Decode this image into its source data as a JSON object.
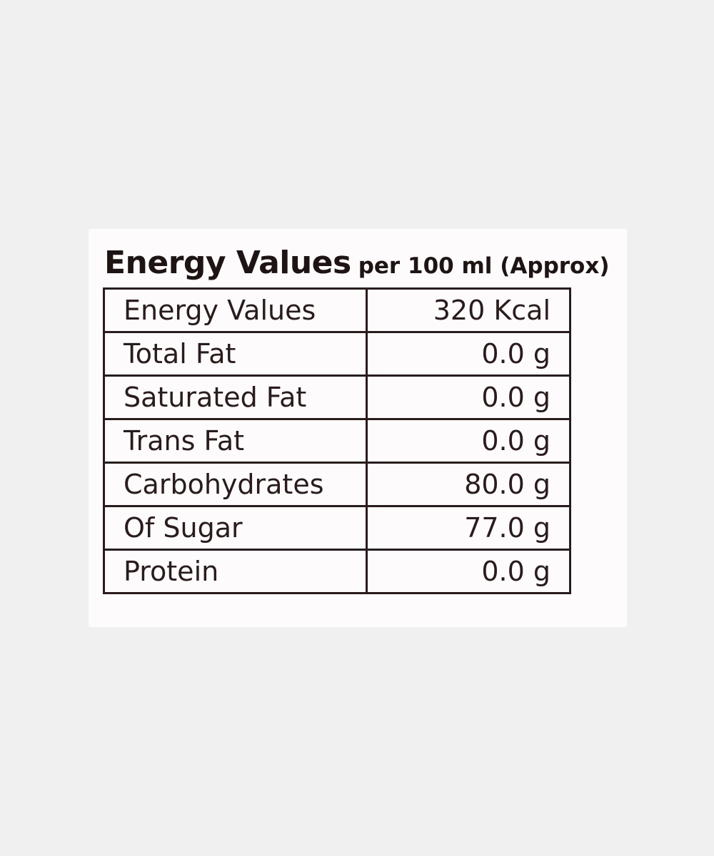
{
  "header": {
    "title": "Energy Values",
    "subtitle": "per 100 ml (Approx)"
  },
  "table": {
    "rows": [
      [
        "Energy Values",
        "320 Kcal"
      ],
      [
        "Total Fat",
        "0.0 g"
      ],
      [
        "Saturated Fat",
        "0.0 g"
      ],
      [
        "Trans Fat",
        "0.0 g"
      ],
      [
        "Carbohydrates",
        "80.0 g"
      ],
      [
        "Of Sugar",
        "77.0 g"
      ],
      [
        "Protein",
        "0.0 g"
      ]
    ]
  }
}
